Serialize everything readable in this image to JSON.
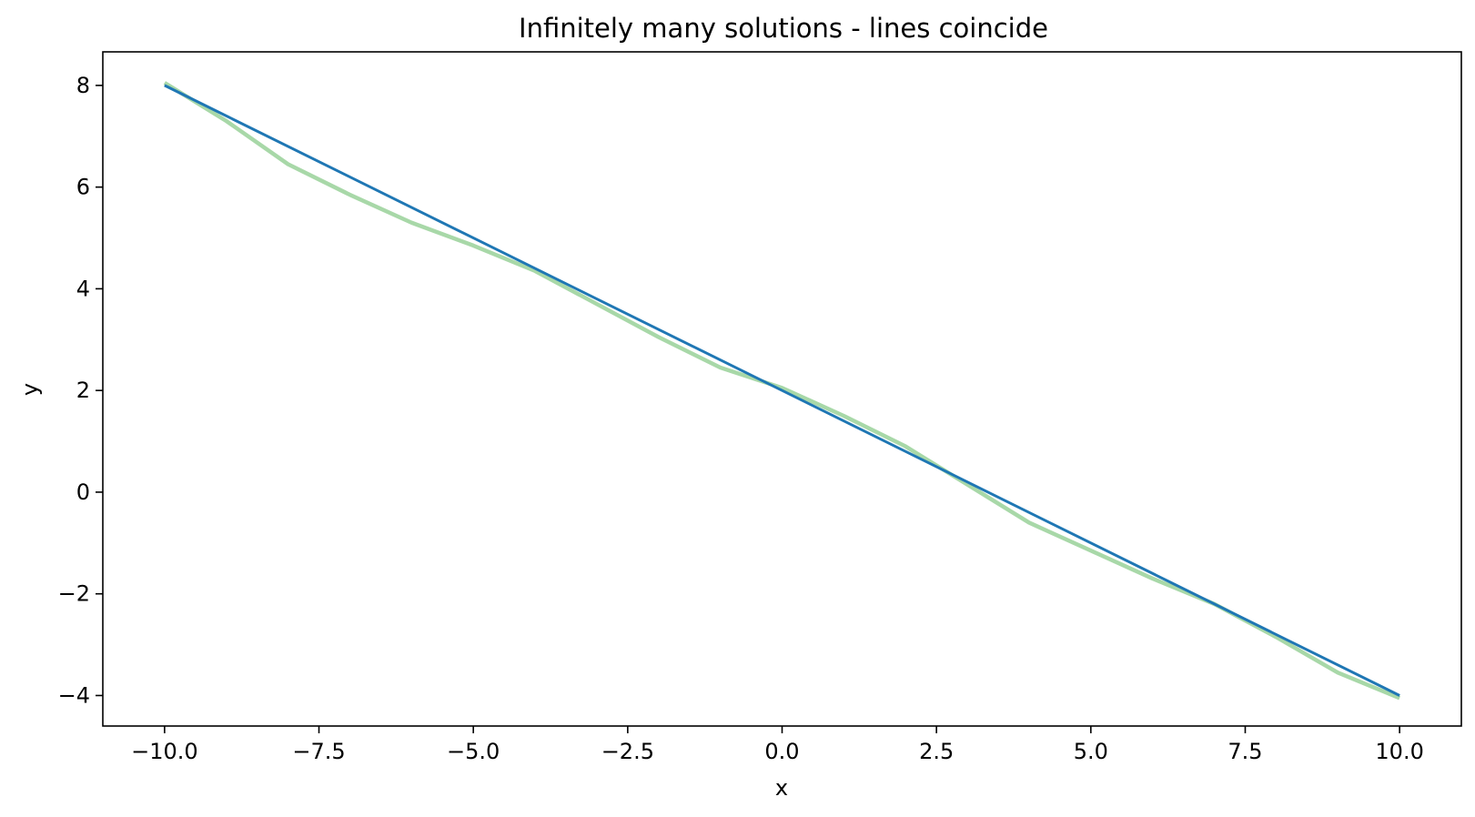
{
  "chart_data": {
    "type": "line",
    "title": "Infinitely many solutions - lines coincide",
    "xlabel": "x",
    "ylabel": "y",
    "xlim": [
      -11.0,
      11.0
    ],
    "ylim": [
      -4.6,
      8.66
    ],
    "grid": false,
    "legend": "none",
    "x_ticks": [
      -10.0,
      -7.5,
      -5.0,
      -2.5,
      0.0,
      2.5,
      5.0,
      7.5,
      10.0
    ],
    "x_tick_labels": [
      "−10.0",
      "−7.5",
      "−5.0",
      "−2.5",
      "0.0",
      "2.5",
      "5.0",
      "7.5",
      "10.0"
    ],
    "y_ticks": [
      -4,
      -2,
      0,
      2,
      4,
      6,
      8
    ],
    "y_tick_labels": [
      "−4",
      "−2",
      "0",
      "2",
      "4",
      "6",
      "8"
    ],
    "series": [
      {
        "color": "#a8d8a8",
        "width": 4.5,
        "x": [
          -10,
          -9,
          -8,
          -7,
          -6,
          -5,
          -4,
          -3,
          -2,
          -1,
          0,
          1,
          2,
          3,
          4,
          5,
          6,
          7,
          8,
          9,
          10
        ],
        "y": [
          8.05,
          7.3,
          6.45,
          5.85,
          5.3,
          4.85,
          4.35,
          3.7,
          3.05,
          2.45,
          2.05,
          1.5,
          0.9,
          0.15,
          -0.6,
          -1.15,
          -1.7,
          -2.2,
          -2.85,
          -3.55,
          -4.05
        ]
      },
      {
        "color": "#1f77b4",
        "width": 3,
        "x": [
          -10,
          10
        ],
        "y": [
          8,
          -4
        ]
      }
    ]
  }
}
